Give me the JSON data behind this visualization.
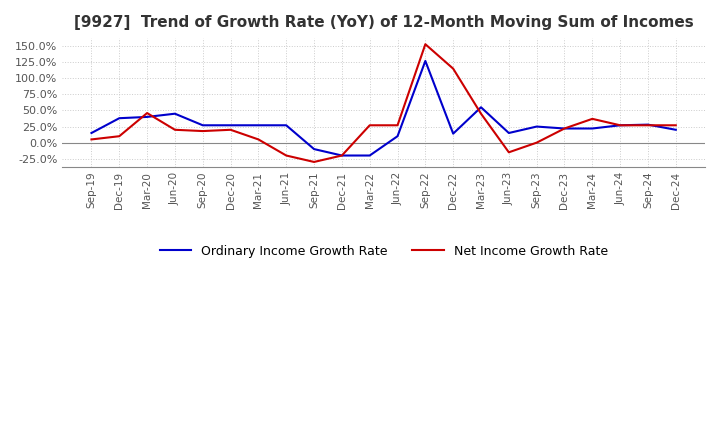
{
  "title": "[9927]  Trend of Growth Rate (YoY) of 12-Month Moving Sum of Incomes",
  "title_fontsize": 11,
  "ylim": [
    -37.5,
    162.5
  ],
  "yticks": [
    -25.0,
    0.0,
    25.0,
    50.0,
    75.0,
    100.0,
    125.0,
    150.0
  ],
  "ytick_labels": [
    "-25.0%",
    "0.0%",
    "25.0%",
    "50.0%",
    "75.0%",
    "100.0%",
    "125.0%",
    "150.0%"
  ],
  "background_color": "#ffffff",
  "plot_bg_color": "#ffffff",
  "grid_color": "#cccccc",
  "ordinary_color": "#0000cc",
  "net_color": "#cc0000",
  "legend_ordinary": "Ordinary Income Growth Rate",
  "legend_net": "Net Income Growth Rate",
  "x_labels": [
    "Sep-19",
    "Dec-19",
    "Mar-20",
    "Jun-20",
    "Sep-20",
    "Dec-20",
    "Mar-21",
    "Jun-21",
    "Sep-21",
    "Dec-21",
    "Mar-22",
    "Jun-22",
    "Sep-22",
    "Dec-22",
    "Mar-23",
    "Jun-23",
    "Sep-23",
    "Dec-23",
    "Mar-24",
    "Jun-24",
    "Sep-24",
    "Dec-24"
  ],
  "ordinary_income_growth": [
    15.0,
    38.0,
    40.0,
    45.0,
    27.0,
    27.0,
    27.0,
    27.0,
    -10.0,
    -20.0,
    -20.0,
    10.0,
    127.0,
    14.0,
    55.0,
    15.0,
    25.0,
    22.0,
    22.0,
    27.0,
    28.0,
    20.0
  ],
  "net_income_growth": [
    5.0,
    10.0,
    46.0,
    20.0,
    18.0,
    20.0,
    5.0,
    -20.0,
    -30.0,
    -20.0,
    27.0,
    27.0,
    153.0,
    115.0,
    45.0,
    -15.0,
    0.0,
    22.0,
    37.0,
    27.0,
    27.0,
    27.0
  ]
}
